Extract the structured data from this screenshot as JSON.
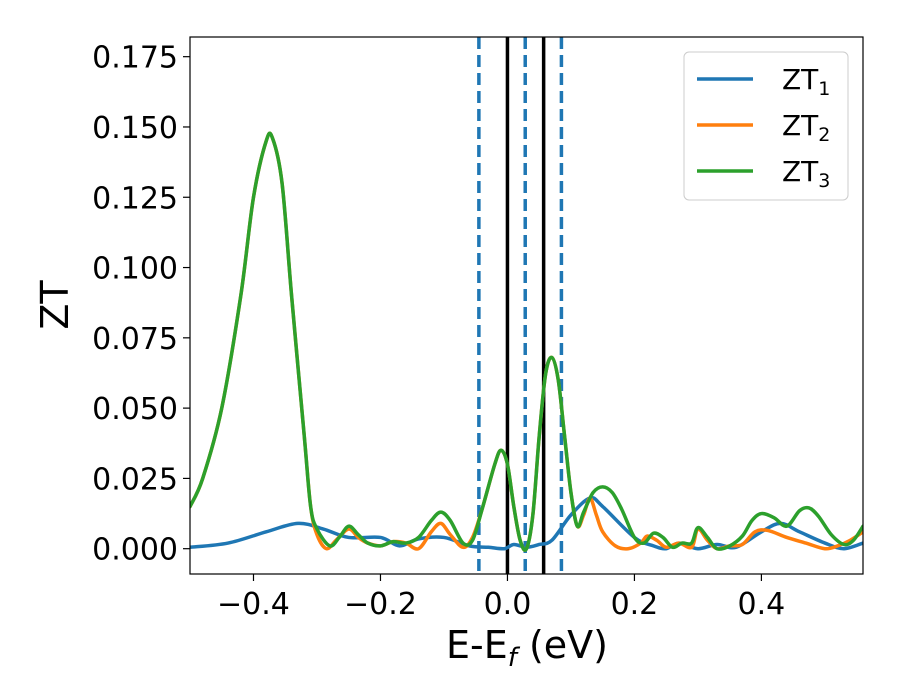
{
  "chart_data": {
    "type": "line",
    "xlabel": "E-E",
    "xlabel_sub": "f",
    "xlabel_unit": " (eV)",
    "ylabel": "ZT",
    "xlim": [
      -0.5,
      0.56
    ],
    "ylim": [
      -0.009,
      0.182
    ],
    "xticks": [
      -0.4,
      -0.2,
      0.0,
      0.2,
      0.4
    ],
    "xtick_labels": [
      "−0.4",
      "−0.2",
      "0.0",
      "0.2",
      "0.4"
    ],
    "yticks": [
      0.0,
      0.025,
      0.05,
      0.075,
      0.1,
      0.125,
      0.15,
      0.175
    ],
    "ytick_labels": [
      "0.000",
      "0.025",
      "0.050",
      "0.075",
      "0.100",
      "0.125",
      "0.150",
      "0.175"
    ],
    "grid": false,
    "legend_position": "top-right",
    "vlines_solid": [
      0.0,
      0.057
    ],
    "vlines_dashed": [
      -0.045,
      0.028,
      0.085
    ],
    "series": [
      {
        "name": "ZT",
        "sub": "1",
        "color": "#1f77b4",
        "points": [
          [
            -0.5,
            0.0005
          ],
          [
            -0.44,
            0.002
          ],
          [
            -0.38,
            0.006
          ],
          [
            -0.33,
            0.009
          ],
          [
            -0.29,
            0.007
          ],
          [
            -0.25,
            0.004
          ],
          [
            -0.2,
            0.004
          ],
          [
            -0.17,
            0.001
          ],
          [
            -0.14,
            0.0035
          ],
          [
            -0.1,
            0.004
          ],
          [
            -0.06,
            0.001
          ],
          [
            -0.03,
            0.0005
          ],
          [
            -0.005,
            0.0
          ],
          [
            0.01,
            0.0015
          ],
          [
            0.03,
            0.0005
          ],
          [
            0.05,
            0.0015
          ],
          [
            0.07,
            0.003
          ],
          [
            0.1,
            0.012
          ],
          [
            0.13,
            0.018
          ],
          [
            0.15,
            0.015
          ],
          [
            0.2,
            0.004
          ],
          [
            0.23,
            0.001
          ],
          [
            0.25,
            0.0
          ],
          [
            0.27,
            0.002
          ],
          [
            0.3,
            0.0
          ],
          [
            0.33,
            0.0015
          ],
          [
            0.36,
            0.0005
          ],
          [
            0.4,
            0.006
          ],
          [
            0.43,
            0.009
          ],
          [
            0.46,
            0.006
          ],
          [
            0.5,
            0.002
          ],
          [
            0.53,
            0.0
          ],
          [
            0.56,
            0.002
          ]
        ]
      },
      {
        "name": "ZT",
        "sub": "2",
        "color": "#ff7f0e",
        "points": [
          [
            -0.5,
            0.015
          ],
          [
            -0.48,
            0.025
          ],
          [
            -0.45,
            0.05
          ],
          [
            -0.42,
            0.09
          ],
          [
            -0.4,
            0.125
          ],
          [
            -0.38,
            0.145
          ],
          [
            -0.37,
            0.146
          ],
          [
            -0.355,
            0.13
          ],
          [
            -0.34,
            0.09
          ],
          [
            -0.32,
            0.04
          ],
          [
            -0.31,
            0.015
          ],
          [
            -0.3,
            0.005
          ],
          [
            -0.285,
            0.0
          ],
          [
            -0.27,
            0.003
          ],
          [
            -0.25,
            0.007
          ],
          [
            -0.235,
            0.004
          ],
          [
            -0.22,
            0.002
          ],
          [
            -0.2,
            0.001
          ],
          [
            -0.18,
            0.0025
          ],
          [
            -0.16,
            0.002
          ],
          [
            -0.14,
            0.0
          ],
          [
            -0.12,
            0.006
          ],
          [
            -0.105,
            0.009
          ],
          [
            -0.09,
            0.005
          ],
          [
            -0.07,
            0.0005
          ],
          [
            -0.055,
            0.004
          ],
          [
            -0.04,
            0.014
          ],
          [
            -0.02,
            0.03
          ],
          [
            -0.01,
            0.035
          ],
          [
            0.0,
            0.03
          ],
          [
            0.01,
            0.015
          ],
          [
            0.02,
            0.003
          ],
          [
            0.03,
            0.0
          ],
          [
            0.04,
            0.012
          ],
          [
            0.05,
            0.04
          ],
          [
            0.06,
            0.062
          ],
          [
            0.07,
            0.068
          ],
          [
            0.08,
            0.06
          ],
          [
            0.09,
            0.04
          ],
          [
            0.1,
            0.02
          ],
          [
            0.11,
            0.008
          ],
          [
            0.12,
            0.012
          ],
          [
            0.13,
            0.018
          ],
          [
            0.14,
            0.012
          ],
          [
            0.15,
            0.006
          ],
          [
            0.17,
            0.001
          ],
          [
            0.19,
            0.0
          ],
          [
            0.21,
            0.002
          ],
          [
            0.22,
            0.0045
          ],
          [
            0.235,
            0.003
          ],
          [
            0.25,
            0.0005
          ],
          [
            0.27,
            0.002
          ],
          [
            0.29,
            0.0005
          ],
          [
            0.3,
            0.007
          ],
          [
            0.315,
            0.003
          ],
          [
            0.33,
            0.0
          ],
          [
            0.35,
            0.001
          ],
          [
            0.37,
            0.0015
          ],
          [
            0.39,
            0.006
          ],
          [
            0.41,
            0.0065
          ],
          [
            0.44,
            0.004
          ],
          [
            0.47,
            0.002
          ],
          [
            0.5,
            0.0
          ],
          [
            0.52,
            0.001
          ],
          [
            0.54,
            0.003
          ],
          [
            0.56,
            0.006
          ]
        ]
      },
      {
        "name": "ZT",
        "sub": "3",
        "color": "#2ca02c",
        "points": [
          [
            -0.5,
            0.015
          ],
          [
            -0.48,
            0.025
          ],
          [
            -0.45,
            0.05
          ],
          [
            -0.42,
            0.09
          ],
          [
            -0.4,
            0.125
          ],
          [
            -0.38,
            0.145
          ],
          [
            -0.37,
            0.146
          ],
          [
            -0.355,
            0.13
          ],
          [
            -0.34,
            0.09
          ],
          [
            -0.32,
            0.04
          ],
          [
            -0.31,
            0.015
          ],
          [
            -0.3,
            0.007
          ],
          [
            -0.28,
            0.001
          ],
          [
            -0.265,
            0.004
          ],
          [
            -0.25,
            0.008
          ],
          [
            -0.235,
            0.005
          ],
          [
            -0.22,
            0.002
          ],
          [
            -0.2,
            0.001
          ],
          [
            -0.18,
            0.0025
          ],
          [
            -0.16,
            0.002
          ],
          [
            -0.14,
            0.004
          ],
          [
            -0.12,
            0.01
          ],
          [
            -0.105,
            0.013
          ],
          [
            -0.09,
            0.01
          ],
          [
            -0.07,
            0.002
          ],
          [
            -0.055,
            0.003
          ],
          [
            -0.04,
            0.014
          ],
          [
            -0.02,
            0.03
          ],
          [
            -0.01,
            0.035
          ],
          [
            0.0,
            0.03
          ],
          [
            0.01,
            0.015
          ],
          [
            0.02,
            0.003
          ],
          [
            0.03,
            0.0
          ],
          [
            0.04,
            0.012
          ],
          [
            0.05,
            0.04
          ],
          [
            0.06,
            0.062
          ],
          [
            0.07,
            0.068
          ],
          [
            0.08,
            0.06
          ],
          [
            0.09,
            0.04
          ],
          [
            0.1,
            0.02
          ],
          [
            0.11,
            0.008
          ],
          [
            0.12,
            0.013
          ],
          [
            0.135,
            0.02
          ],
          [
            0.15,
            0.022
          ],
          [
            0.165,
            0.02
          ],
          [
            0.18,
            0.014
          ],
          [
            0.2,
            0.004
          ],
          [
            0.215,
            0.002
          ],
          [
            0.23,
            0.0055
          ],
          [
            0.245,
            0.004
          ],
          [
            0.26,
            0.0005
          ],
          [
            0.275,
            0.002
          ],
          [
            0.29,
            0.002
          ],
          [
            0.3,
            0.0075
          ],
          [
            0.315,
            0.004
          ],
          [
            0.33,
            0.0
          ],
          [
            0.35,
            0.001
          ],
          [
            0.37,
            0.0045
          ],
          [
            0.385,
            0.01
          ],
          [
            0.4,
            0.0125
          ],
          [
            0.42,
            0.011
          ],
          [
            0.44,
            0.008
          ],
          [
            0.46,
            0.0135
          ],
          [
            0.475,
            0.0145
          ],
          [
            0.49,
            0.0115
          ],
          [
            0.51,
            0.005
          ],
          [
            0.53,
            0.0015
          ],
          [
            0.545,
            0.003
          ],
          [
            0.56,
            0.008
          ]
        ]
      }
    ]
  }
}
